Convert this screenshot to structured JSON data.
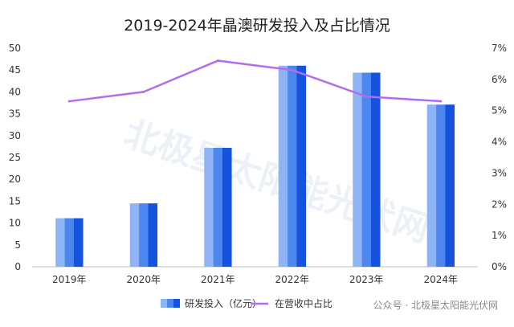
{
  "chart_data": {
    "type": "bar+line",
    "title": "2019-2024年晶澳研发投入及占比情况",
    "categories": [
      "2019年",
      "2020年",
      "2021年",
      "2022年",
      "2023年",
      "2024年"
    ],
    "series": [
      {
        "name": "研发投入（亿元）",
        "type": "bar",
        "axis": "left",
        "color": "#2f6fe8",
        "values": [
          11.1,
          14.5,
          27.2,
          46.0,
          44.4,
          37.1
        ]
      },
      {
        "name": "在营收中占比",
        "type": "line",
        "axis": "right",
        "color": "#b36cf0",
        "values": [
          5.3,
          5.6,
          6.6,
          6.3,
          5.45,
          5.3
        ]
      }
    ],
    "y_left": {
      "min": 0,
      "max": 50,
      "ticks": [
        "0",
        "5",
        "10",
        "15",
        "20",
        "25",
        "30",
        "35",
        "40",
        "45",
        "50"
      ]
    },
    "y_right": {
      "min": 0,
      "max": 7,
      "ticks": [
        "0%",
        "1%",
        "2%",
        "3%",
        "4%",
        "5%",
        "6%",
        "7%"
      ]
    },
    "grid": false,
    "legend_position": "bottom"
  },
  "watermark": {
    "bottom_text": "公众号 · 北极星太阳能光伏网",
    "big_text": "北极星太阳能光伏网"
  }
}
